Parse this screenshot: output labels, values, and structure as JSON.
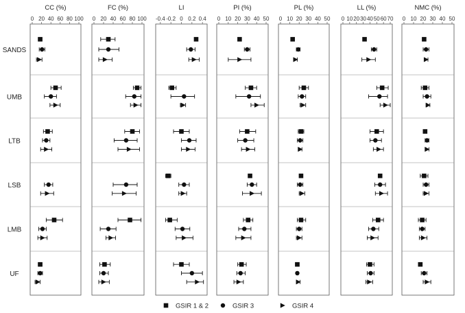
{
  "chart_data": {
    "type": "scatter",
    "error_bars": true,
    "grid": false,
    "legend_position": "bottom",
    "rows": [
      "SANDS",
      "UMB",
      "LTB",
      "LSB",
      "LMB",
      "UF"
    ],
    "series": [
      {
        "name": "GSIR 1 & 2",
        "marker": "square"
      },
      {
        "name": "GSIR 3",
        "marker": "circle"
      },
      {
        "name": "GSIR 4",
        "marker": "triangle-right"
      }
    ],
    "panels": [
      {
        "title": "CC (%)",
        "xlim": [
          0,
          100
        ],
        "ticks": [
          "0",
          "20",
          "40",
          "60",
          "80",
          "100"
        ],
        "tick_values": [
          0,
          20,
          40,
          60,
          80,
          100
        ],
        "data": [
          [
            [
              17,
              13,
              21
            ],
            [
              21,
              15,
              27
            ],
            [
              15,
              9,
              21
            ]
          ],
          [
            [
              50,
              40,
              62
            ],
            [
              40,
              26,
              52
            ],
            [
              50,
              38,
              60
            ]
          ],
          [
            [
              33,
              24,
              43
            ],
            [
              30,
              22,
              38
            ],
            [
              30,
              18,
              42
            ]
          ],
          [
            [
              null,
              null,
              null
            ],
            [
              35,
              26,
              44
            ],
            [
              32,
              18,
              46
            ]
          ],
          [
            [
              47,
              30,
              65
            ],
            [
              22,
              14,
              30
            ],
            [
              22,
              12,
              32
            ]
          ],
          [
            [
              17,
              13,
              21
            ],
            [
              17,
              12,
              22
            ],
            [
              12,
              6,
              17
            ]
          ]
        ]
      },
      {
        "title": "FC (%)",
        "xlim": [
          0,
          100
        ],
        "ticks": [
          "0",
          "20",
          "40",
          "60",
          "80",
          "100"
        ],
        "tick_values": [
          0,
          20,
          40,
          60,
          80,
          100
        ],
        "data": [
          [
            [
              30,
              14,
              44
            ],
            [
              30,
              10,
              52
            ],
            [
              23,
              10,
              38
            ]
          ],
          [
            [
              90,
              82,
              98
            ],
            [
              84,
              66,
              98
            ],
            [
              87,
              76,
              98
            ]
          ],
          [
            [
              80,
              64,
              95
            ],
            [
              67,
              42,
              90
            ],
            [
              73,
              50,
              95
            ]
          ],
          [
            [
              null,
              null,
              null
            ],
            [
              67,
              40,
              90
            ],
            [
              63,
              38,
              88
            ]
          ],
          [
            [
              75,
              50,
              98
            ],
            [
              30,
              13,
              46
            ],
            [
              35,
              25,
              45
            ]
          ],
          [
            [
              22,
              12,
              34
            ],
            [
              20,
              12,
              30
            ],
            [
              20,
              10,
              32
            ]
          ]
        ]
      },
      {
        "title": "LI",
        "xlim": [
          -0.45,
          0.45
        ],
        "ticks": [
          "-0.4",
          "-0.2",
          "0",
          "0.2",
          "0.4"
        ],
        "tick_values": [
          -0.4,
          -0.2,
          0,
          0.2,
          0.4
        ],
        "data": [
          [
            [
              0.28,
              0.28,
              0.28
            ],
            [
              0.18,
              0.1,
              0.26
            ],
            [
              0.24,
              0.14,
              0.34
            ]
          ],
          [
            [
              -0.18,
              -0.24,
              -0.1
            ],
            [
              0.05,
              -0.2,
              0.25
            ],
            [
              0.03,
              -0.02,
              0.08
            ]
          ],
          [
            [
              0.0,
              -0.15,
              0.15
            ],
            [
              0.15,
              0.0,
              0.28
            ],
            [
              0.13,
              0.0,
              0.26
            ]
          ],
          [
            [
              -0.25,
              -0.3,
              -0.2
            ],
            [
              0.05,
              -0.05,
              0.15
            ],
            [
              0.03,
              -0.05,
              0.1
            ]
          ],
          [
            [
              -0.22,
              -0.3,
              -0.08
            ],
            [
              0.02,
              -0.12,
              0.16
            ],
            [
              0.05,
              -0.1,
              0.22
            ]
          ],
          [
            [
              0.0,
              -0.15,
              0.15
            ],
            [
              0.2,
              0.0,
              0.4
            ],
            [
              0.3,
              0.1,
              0.42
            ]
          ]
        ]
      },
      {
        "title": "PI (%)",
        "xlim": [
          0,
          50
        ],
        "ticks": [
          "0",
          "10",
          "20",
          "30",
          "40",
          "50"
        ],
        "tick_values": [
          0,
          10,
          20,
          30,
          40,
          50
        ],
        "data": [
          [
            [
              22,
              21,
              23
            ],
            [
              30,
              27,
              33
            ],
            [
              22,
              10,
              34
            ]
          ],
          [
            [
              34,
              28,
              40
            ],
            [
              32,
              18,
              44
            ],
            [
              40,
              34,
              48
            ]
          ],
          [
            [
              30,
              22,
              39
            ],
            [
              28,
              20,
              37
            ],
            [
              31,
              24,
              38
            ]
          ],
          [
            [
              33,
              32,
              34
            ],
            [
              35,
              30,
              40
            ],
            [
              35,
              25,
              45
            ]
          ],
          [
            [
              31,
              26,
              36
            ],
            [
              27,
              21,
              34
            ],
            [
              26,
              18,
              34
            ]
          ],
          [
            [
              24,
              20,
              29
            ],
            [
              23,
              19,
              28
            ],
            [
              21,
              16,
              26
            ]
          ]
        ]
      },
      {
        "title": "PL (%)",
        "xlim": [
          0,
          50
        ],
        "ticks": [
          "0",
          "10",
          "20",
          "30",
          "40",
          "50"
        ],
        "tick_values": [
          0,
          10,
          20,
          30,
          40,
          50
        ],
        "data": [
          [
            [
              13,
              12,
              14
            ],
            [
              19,
              17,
              21
            ],
            [
              16,
              14,
              18
            ]
          ],
          [
            [
              25,
              20,
              30
            ],
            [
              23,
              19,
              27
            ],
            [
              24,
              21,
              27
            ]
          ],
          [
            [
              22,
              19,
              25
            ],
            [
              21,
              18,
              24
            ],
            [
              21,
              19,
              23
            ]
          ],
          [
            [
              22,
              21,
              23
            ],
            [
              21,
              18,
              24
            ],
            [
              23,
              20,
              26
            ]
          ],
          [
            [
              22,
              18,
              27
            ],
            [
              20,
              17,
              23
            ],
            [
              20,
              17,
              23
            ]
          ],
          [
            [
              18,
              16,
              20
            ],
            [
              18,
              17,
              19
            ],
            [
              19,
              17,
              21
            ]
          ]
        ]
      },
      {
        "title": "LL (%)",
        "xlim": [
          0,
          70
        ],
        "ticks": [
          "0",
          "10",
          "20",
          "30",
          "40",
          "50",
          "60",
          "70"
        ],
        "tick_values": [
          0,
          10,
          20,
          30,
          40,
          50,
          60,
          70
        ],
        "data": [
          [
            [
              32,
              30,
              34
            ],
            [
              46,
              42,
              50
            ],
            [
              38,
              28,
              48
            ]
          ],
          [
            [
              58,
              50,
              67
            ],
            [
              54,
              38,
              66
            ],
            [
              63,
              55,
              70
            ]
          ],
          [
            [
              50,
              40,
              60
            ],
            [
              48,
              40,
              57
            ],
            [
              53,
              45,
              60
            ]
          ],
          [
            [
              55,
              53,
              57
            ],
            [
              55,
              47,
              63
            ],
            [
              57,
              48,
              66
            ]
          ],
          [
            [
              52,
              44,
              60
            ],
            [
              45,
              38,
              53
            ],
            [
              44,
              36,
              52
            ]
          ],
          [
            [
              40,
              35,
              46
            ],
            [
              41,
              36,
              46
            ],
            [
              39,
              34,
              44
            ]
          ]
        ]
      },
      {
        "title": "NMC (%)",
        "xlim": [
          0,
          50
        ],
        "ticks": [
          "0",
          "10",
          "20",
          "30",
          "40",
          "50"
        ],
        "tick_values": [
          0,
          10,
          20,
          30,
          40,
          50
        ],
        "data": [
          [
            [
              21,
              20,
              22
            ],
            [
              23,
              20,
              26
            ],
            [
              23,
              21,
              25
            ]
          ],
          [
            [
              22,
              18,
              26
            ],
            [
              24,
              20,
              28
            ],
            [
              25,
              23,
              27
            ]
          ],
          [
            [
              22,
              21,
              23
            ],
            [
              24,
              22,
              26
            ],
            [
              24,
              22,
              26
            ]
          ],
          [
            [
              21,
              17,
              25
            ],
            [
              23,
              20,
              26
            ],
            [
              23,
              20,
              26
            ]
          ],
          [
            [
              19,
              15,
              23
            ],
            [
              19,
              16,
              22
            ],
            [
              20,
              16,
              24
            ]
          ],
          [
            [
              17,
              15,
              19
            ],
            [
              21,
              18,
              24
            ],
            [
              24,
              20,
              28
            ]
          ]
        ]
      }
    ]
  }
}
